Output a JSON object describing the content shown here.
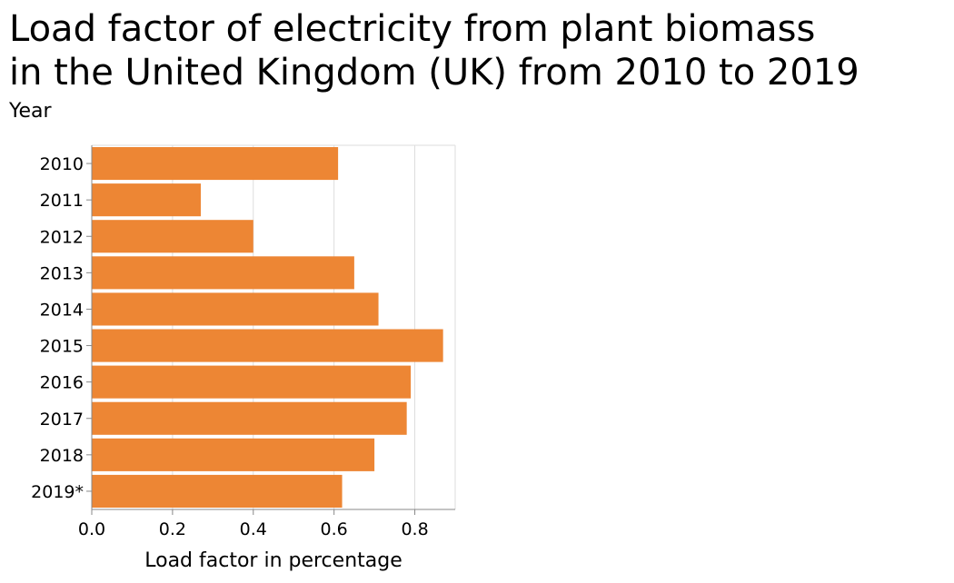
{
  "chart_data": {
    "type": "bar",
    "orientation": "horizontal",
    "title_lines": [
      "Load factor of electricity from plant biomass",
      "in the United Kingdom (UK) from 2010 to 2019"
    ],
    "xlabel": "Load factor in percentage",
    "ylabel": "Year",
    "categories": [
      "2010",
      "2011",
      "2012",
      "2013",
      "2014",
      "2015",
      "2016",
      "2017",
      "2018",
      "2019*"
    ],
    "values": [
      0.61,
      0.27,
      0.4,
      0.65,
      0.71,
      0.87,
      0.79,
      0.78,
      0.7,
      0.62
    ],
    "xlim": [
      0,
      0.9
    ],
    "xticks": [
      "0.0",
      "0.2",
      "0.4",
      "0.6",
      "0.8"
    ],
    "xtick_values": [
      0,
      0.2,
      0.4,
      0.6,
      0.8
    ],
    "grid": "vertical",
    "bar_color": "#ed8634",
    "grid_color": "#dddddd",
    "axis_color": "#888888"
  }
}
